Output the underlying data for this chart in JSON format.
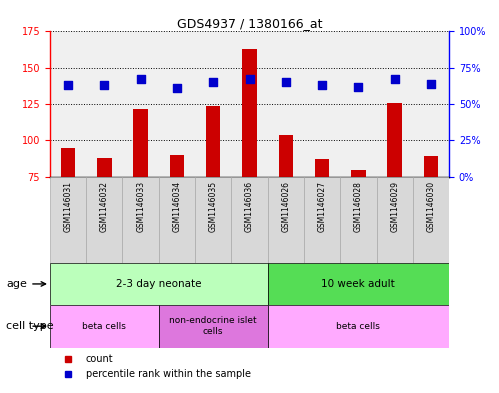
{
  "title": "GDS4937 / 1380166_at",
  "samples": [
    "GSM1146031",
    "GSM1146032",
    "GSM1146033",
    "GSM1146034",
    "GSM1146035",
    "GSM1146036",
    "GSM1146026",
    "GSM1146027",
    "GSM1146028",
    "GSM1146029",
    "GSM1146030"
  ],
  "counts": [
    95,
    88,
    122,
    90,
    124,
    163,
    104,
    87,
    80,
    126,
    89
  ],
  "percentiles": [
    63,
    63,
    67,
    61,
    65,
    67,
    65,
    63,
    62,
    67,
    64
  ],
  "ylim_left": [
    75,
    175
  ],
  "ylim_right": [
    0,
    100
  ],
  "yticks_left": [
    75,
    100,
    125,
    150,
    175
  ],
  "ytick_labels_left": [
    "75",
    "100",
    "125",
    "150",
    "175"
  ],
  "yticks_right": [
    0,
    25,
    50,
    75,
    100
  ],
  "ytick_labels_right": [
    "0%",
    "25%",
    "50%",
    "75%",
    "100%"
  ],
  "bar_color": "#cc0000",
  "dot_color": "#0000cc",
  "bg_color": "#ffffff",
  "plot_bg": "#f0f0f0",
  "age_groups": [
    {
      "label": "2-3 day neonate",
      "start": 0,
      "end": 6,
      "color": "#bbffbb"
    },
    {
      "label": "10 week adult",
      "start": 6,
      "end": 11,
      "color": "#55dd55"
    }
  ],
  "cell_type_groups": [
    {
      "label": "beta cells",
      "start": 0,
      "end": 3,
      "color": "#ffaaff"
    },
    {
      "label": "non-endocrine islet\ncells",
      "start": 3,
      "end": 6,
      "color": "#dd77dd"
    },
    {
      "label": "beta cells",
      "start": 6,
      "end": 11,
      "color": "#ffaaff"
    }
  ],
  "legend_items": [
    {
      "label": "count",
      "color": "#cc0000",
      "marker": "s"
    },
    {
      "label": "percentile rank within the sample",
      "color": "#0000cc",
      "marker": "s"
    }
  ],
  "n_samples": 11,
  "bar_width": 0.4,
  "dot_size": 35
}
